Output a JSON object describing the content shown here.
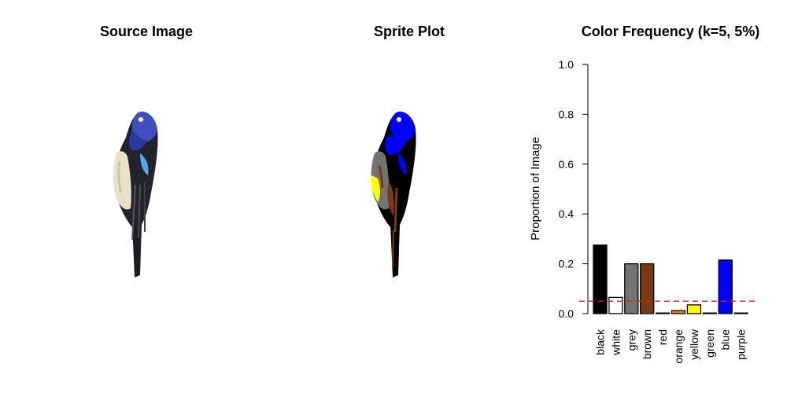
{
  "panels": {
    "source": {
      "title": "Source Image"
    },
    "sprite": {
      "title": "Sprite Plot"
    },
    "chart": {
      "title": "Color Frequency (k=5, 5%)"
    }
  },
  "chart_data": {
    "type": "bar",
    "title": "Color Frequency (k=5, 5%)",
    "xlabel": "",
    "ylabel": "Proportion of Image",
    "ylim": [
      0,
      1.0
    ],
    "yticks": [
      0.0,
      0.2,
      0.4,
      0.6,
      0.8,
      1.0
    ],
    "ytick_labels": [
      "0.0",
      "0.2",
      "0.4",
      "0.6",
      "0.8",
      "1.0"
    ],
    "categories": [
      "black",
      "white",
      "grey",
      "brown",
      "red",
      "orange",
      "yellow",
      "green",
      "blue",
      "purple"
    ],
    "values": [
      0.275,
      0.065,
      0.2,
      0.2,
      0.0,
      0.012,
      0.035,
      0.0,
      0.215,
      0.0
    ],
    "bar_colors": [
      "#000000",
      "#ffffff",
      "#737373",
      "#7a3a10",
      "#ff0000",
      "#e08a1e",
      "#ffff00",
      "#00a000",
      "#0000ff",
      "#8000ff"
    ],
    "threshold": {
      "value": 0.05,
      "color": "#e31a1c",
      "style": "dashed"
    },
    "grid": false,
    "legend": "none"
  }
}
